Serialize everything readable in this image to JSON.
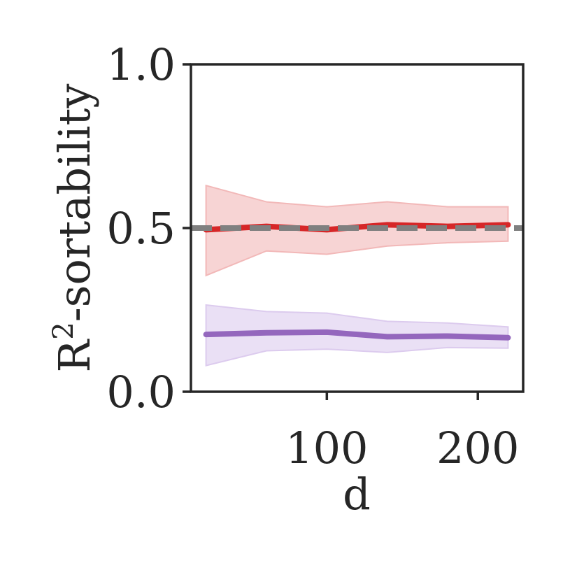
{
  "chart_data": {
    "type": "line",
    "xlabel": "d",
    "ylabel": "R",
    "ylabel_sup": "2",
    "ylabel_suffix": "-sortability",
    "xlim": [
      10,
      230
    ],
    "ylim": [
      0.0,
      1.0
    ],
    "xticks": [
      100,
      200
    ],
    "xtick_labels": [
      "100",
      "200"
    ],
    "yticks": [
      0.0,
      0.5,
      1.0
    ],
    "ytick_labels": [
      "0.0",
      "0.5",
      "1.0"
    ],
    "grid": false,
    "x": [
      20,
      60,
      100,
      140,
      180,
      220
    ],
    "series": [
      {
        "color": "#d62728",
        "band_color": "#f2b8b8",
        "values": [
          0.495,
          0.505,
          0.495,
          0.51,
          0.505,
          0.51
        ],
        "lower": [
          0.355,
          0.43,
          0.42,
          0.445,
          0.455,
          0.46
        ],
        "upper": [
          0.63,
          0.58,
          0.565,
          0.58,
          0.565,
          0.565
        ]
      },
      {
        "color": "#9467bd",
        "band_color": "#dccbee",
        "values": [
          0.175,
          0.18,
          0.182,
          0.168,
          0.17,
          0.165
        ],
        "lower": [
          0.08,
          0.125,
          0.13,
          0.12,
          0.135,
          0.133
        ],
        "upper": [
          0.265,
          0.245,
          0.24,
          0.215,
          0.21,
          0.198
        ]
      }
    ],
    "reference_line": {
      "y": 0.5,
      "color": "#808080",
      "style": "dashed"
    }
  }
}
